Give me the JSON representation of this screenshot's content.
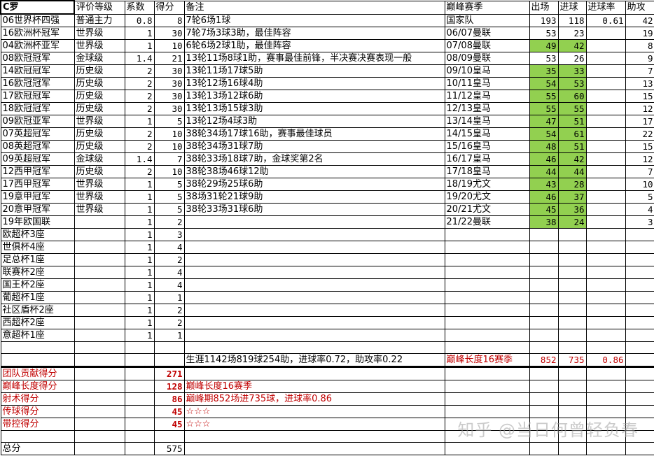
{
  "header": [
    "C罗",
    "评价等级",
    "系数",
    "得分",
    "备注",
    "巅峰赛季",
    "出场",
    "进球",
    "进球率",
    "助攻"
  ],
  "honors": [
    {
      "name": "06世界杯四强",
      "level": "普通主力",
      "coef": "0.8",
      "score": "8",
      "note": "7轮6场1球"
    },
    {
      "name": "16欧洲杯冠军",
      "level": "世界级",
      "coef": "1",
      "score": "30",
      "note": "7轮7场3球3助，最佳阵容"
    },
    {
      "name": "04欧洲杯亚军",
      "level": "世界级",
      "coef": "1",
      "score": "10",
      "note": "6轮6场2球1助，最佳阵容"
    },
    {
      "name": "08欧冠冠军",
      "level": "金球级",
      "coef": "1.4",
      "score": "21",
      "note": "13轮11场8球1助，赛事最佳前锋，半决赛决赛表现一般"
    },
    {
      "name": "14欧冠冠军",
      "level": "历史级",
      "coef": "2",
      "score": "30",
      "note": "13轮11场17球5助"
    },
    {
      "name": "16欧冠冠军",
      "level": "历史级",
      "coef": "2",
      "score": "30",
      "note": "13轮12场16球4助"
    },
    {
      "name": "17欧冠冠军",
      "level": "历史级",
      "coef": "2",
      "score": "30",
      "note": "13轮13场12球6助"
    },
    {
      "name": "18欧冠冠军",
      "level": "历史级",
      "coef": "2",
      "score": "30",
      "note": "13轮13场15球3助"
    },
    {
      "name": "09欧冠亚军",
      "level": "世界级",
      "coef": "1",
      "score": "5",
      "note": "13轮12场4球3助"
    },
    {
      "name": "07英超冠军",
      "level": "历史级",
      "coef": "2",
      "score": "10",
      "note": "38轮34场17球16助，赛事最佳球员"
    },
    {
      "name": "08英超冠军",
      "level": "历史级",
      "coef": "2",
      "score": "10",
      "note": "38轮34场31球7助"
    },
    {
      "name": "09英超冠军",
      "level": "金球级",
      "coef": "1.4",
      "score": "7",
      "note": "38轮33场18球7助，金球奖第2名"
    },
    {
      "name": "12西甲冠军",
      "level": "历史级",
      "coef": "2",
      "score": "10",
      "note": "38轮38场46球12助"
    },
    {
      "name": "17西甲冠军",
      "level": "世界级",
      "coef": "1",
      "score": "5",
      "note": "38轮29场25球6助"
    },
    {
      "name": "19意甲冠军",
      "level": "世界级",
      "coef": "1",
      "score": "5",
      "note": "38场31轮21球9助"
    },
    {
      "name": "20意甲冠军",
      "level": "世界级",
      "coef": "1",
      "score": "5",
      "note": "38轮33场31球6助"
    },
    {
      "name": "19年欧国联",
      "level": "",
      "coef": "1",
      "score": "2",
      "note": ""
    },
    {
      "name": "欧超杯3座",
      "level": "",
      "coef": "1",
      "score": "3",
      "note": ""
    },
    {
      "name": "世俱杯4座",
      "level": "",
      "coef": "1",
      "score": "4",
      "note": ""
    },
    {
      "name": "足总杯1座",
      "level": "",
      "coef": "1",
      "score": "2",
      "note": ""
    },
    {
      "name": "联赛杯2座",
      "level": "",
      "coef": "1",
      "score": "4",
      "note": ""
    },
    {
      "name": "国王杯2座",
      "level": "",
      "coef": "1",
      "score": "4",
      "note": ""
    },
    {
      "name": "葡超杯1座",
      "level": "",
      "coef": "1",
      "score": "1",
      "note": ""
    },
    {
      "name": "社区盾杯2座",
      "level": "",
      "coef": "1",
      "score": "2",
      "note": ""
    },
    {
      "name": "西超杯2座",
      "level": "",
      "coef": "1",
      "score": "2",
      "note": ""
    },
    {
      "name": "意超杯1座",
      "level": "",
      "coef": "1",
      "score": "1",
      "note": ""
    }
  ],
  "seasons": [
    {
      "season": "国家队",
      "apps": "193",
      "goals": "118",
      "rate": "0.61",
      "assists": "42",
      "peak": false
    },
    {
      "season": "06/07曼联",
      "apps": "53",
      "goals": "23",
      "rate": "",
      "assists": "19",
      "peak": false
    },
    {
      "season": "07/08曼联",
      "apps": "49",
      "goals": "42",
      "rate": "",
      "assists": "8",
      "peak": true
    },
    {
      "season": "08/09曼联",
      "apps": "53",
      "goals": "26",
      "rate": "",
      "assists": "9",
      "peak": false
    },
    {
      "season": "09/10皇马",
      "apps": "35",
      "goals": "33",
      "rate": "",
      "assists": "7",
      "peak": true
    },
    {
      "season": "10/11皇马",
      "apps": "54",
      "goals": "53",
      "rate": "",
      "assists": "13",
      "peak": true
    },
    {
      "season": "11/12皇马",
      "apps": "55",
      "goals": "60",
      "rate": "",
      "assists": "15",
      "peak": true
    },
    {
      "season": "12/13皇马",
      "apps": "55",
      "goals": "55",
      "rate": "",
      "assists": "12",
      "peak": true
    },
    {
      "season": "13/14皇马",
      "apps": "47",
      "goals": "51",
      "rate": "",
      "assists": "17",
      "peak": true
    },
    {
      "season": "14/15皇马",
      "apps": "54",
      "goals": "61",
      "rate": "",
      "assists": "22",
      "peak": true
    },
    {
      "season": "15/16皇马",
      "apps": "48",
      "goals": "51",
      "rate": "",
      "assists": "15",
      "peak": true
    },
    {
      "season": "16/17皇马",
      "apps": "46",
      "goals": "42",
      "rate": "",
      "assists": "12",
      "peak": true
    },
    {
      "season": "17/18皇马",
      "apps": "44",
      "goals": "44",
      "rate": "",
      "assists": "7",
      "peak": true
    },
    {
      "season": "18/19尤文",
      "apps": "43",
      "goals": "28",
      "rate": "",
      "assists": "10",
      "peak": true
    },
    {
      "season": "19/20尤文",
      "apps": "46",
      "goals": "37",
      "rate": "",
      "assists": "5",
      "peak": true
    },
    {
      "season": "20/21尤文",
      "apps": "45",
      "goals": "36",
      "rate": "",
      "assists": "4",
      "peak": true
    },
    {
      "season": "21/22曼联",
      "apps": "38",
      "goals": "24",
      "rate": "",
      "assists": "3",
      "peak": true
    }
  ],
  "career": {
    "note": "生涯1142场819球254助，进球率0.72，助攻率0.22",
    "peak_label": "巅峰长度16赛季",
    "apps": "852",
    "goals": "735",
    "rate": "0.86"
  },
  "scores": [
    {
      "label": "团队贡献得分",
      "value": "271",
      "note": ""
    },
    {
      "label": "巅峰长度得分",
      "value": "128",
      "note": "巅峰长度16赛季"
    },
    {
      "label": "射术得分",
      "value": "86",
      "note": "巅峰期852场进735球，进球率0.86"
    },
    {
      "label": "传球得分",
      "value": "45",
      "note": "☆☆☆"
    },
    {
      "label": "带控得分",
      "value": "45",
      "note": "☆☆☆"
    }
  ],
  "total": {
    "label": "总分",
    "value": "575"
  },
  "watermark": "知乎 @当日何曾轻负春",
  "colors": {
    "peak_fill": "#92d050",
    "score_text": "#c00000"
  }
}
